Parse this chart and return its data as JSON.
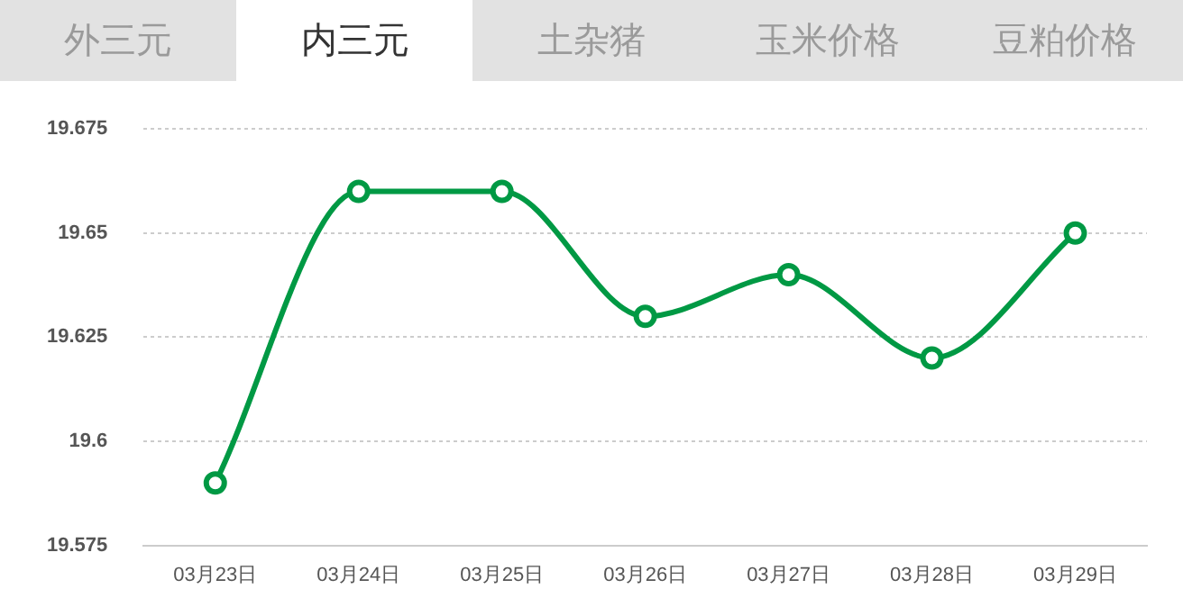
{
  "chart_data": {
    "type": "line",
    "annotations": [
      "外三元",
      "内三元",
      "土杂猪",
      "玉米价格",
      "豆粕价格"
    ],
    "categories": [
      "03月23日",
      "03月24日",
      "03月25日",
      "03月26日",
      "03月27日",
      "03月28日",
      "03月29日"
    ],
    "series": [
      {
        "color": "#009944",
        "values": [
          19.59,
          19.66,
          19.66,
          19.63,
          19.64,
          19.62,
          19.65
        ]
      }
    ],
    "ylim": [
      19.575,
      19.675
    ],
    "yticks": [
      19.575,
      19.6,
      19.625,
      19.65,
      19.675
    ],
    "grid": "y",
    "legend": false,
    "marker": "circle",
    "line_style": "solid"
  }
}
